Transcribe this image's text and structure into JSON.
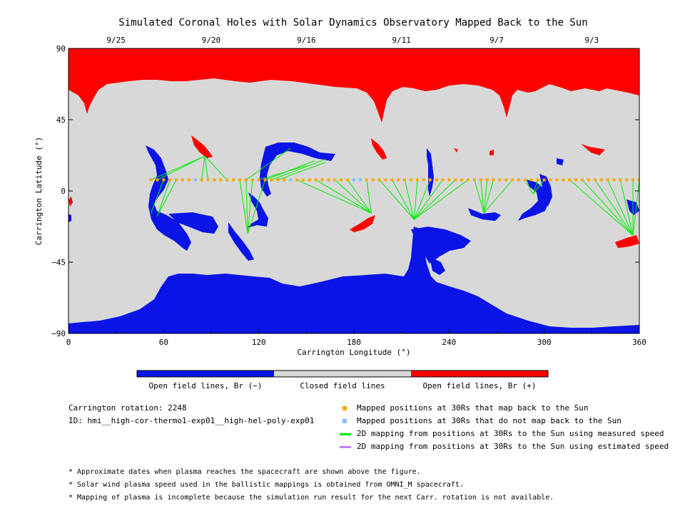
{
  "colors": {
    "open_negative": "#0a14e6",
    "closed": "#d8d8d8",
    "open_positive": "#ff0000",
    "mapped_back": "#f5a800",
    "not_mapped_back": "#7fbfff",
    "measured_speed": "#00ee00",
    "estimated_speed": "#c080ff"
  },
  "chart_data": {
    "type": "map",
    "title": "Simulated Coronal Holes with Solar Dynamics Observatory Mapped Back to the Sun",
    "xlabel": "Carrington Longitude (°)",
    "ylabel": "Carrington Latitude (°)",
    "xlim": [
      0,
      360
    ],
    "ylim": [
      -90,
      90
    ],
    "x_ticks": [
      0,
      60,
      120,
      180,
      240,
      300,
      360
    ],
    "y_ticks": [
      90,
      45,
      0,
      -45,
      -90
    ],
    "y_tick_labels": [
      "90",
      "45",
      "0",
      "−45",
      "−90"
    ],
    "top_axis_dates": [
      {
        "label": "9/25",
        "lon": 30
      },
      {
        "label": "9/20",
        "lon": 90
      },
      {
        "label": "9/16",
        "lon": 150
      },
      {
        "label": "9/11",
        "lon": 210
      },
      {
        "label": "9/7",
        "lon": 270
      },
      {
        "label": "9/3",
        "lon": 330
      }
    ],
    "spacecraft_lat": 7,
    "mapped_positions_lon": [
      52,
      56,
      60,
      64,
      68,
      72,
      76,
      84,
      88,
      92,
      96,
      100,
      104,
      108,
      112,
      116,
      120,
      124,
      128,
      132,
      136,
      144,
      148,
      152,
      156,
      160,
      164,
      168,
      172,
      176,
      188,
      192,
      196,
      200,
      204,
      208,
      212,
      216,
      220,
      224,
      228,
      232,
      236,
      240,
      244,
      248,
      252,
      256,
      260,
      264,
      268,
      272,
      276,
      280,
      284,
      288,
      292,
      296,
      300,
      304,
      308,
      312,
      316,
      320,
      324,
      328,
      332,
      336,
      340,
      344,
      348,
      352,
      356,
      360
    ],
    "unmapped_positions_lon": [
      80,
      140,
      180,
      184
    ],
    "field_lines": [
      {
        "from": [
          52,
          7
        ],
        "to": [
          86,
          22
        ]
      },
      {
        "from": [
          56,
          7
        ],
        "to": [
          86,
          22
        ]
      },
      {
        "from": [
          60,
          7
        ],
        "to": [
          52,
          -14
        ]
      },
      {
        "from": [
          64,
          7
        ],
        "to": [
          56,
          -16
        ]
      },
      {
        "from": [
          68,
          7
        ],
        "to": [
          57,
          -14
        ]
      },
      {
        "from": [
          84,
          7
        ],
        "to": [
          86,
          22
        ]
      },
      {
        "from": [
          88,
          7
        ],
        "to": [
          86,
          22
        ]
      },
      {
        "from": [
          100,
          7
        ],
        "to": [
          86,
          22
        ]
      },
      {
        "from": [
          108,
          7
        ],
        "to": [
          113,
          -27
        ]
      },
      {
        "from": [
          112,
          7
        ],
        "to": [
          113,
          -27
        ]
      },
      {
        "from": [
          116,
          7
        ],
        "to": [
          113,
          -27
        ]
      },
      {
        "from": [
          124,
          7
        ],
        "to": [
          113,
          -27
        ]
      },
      {
        "from": [
          112,
          7
        ],
        "to": [
          140,
          27
        ]
      },
      {
        "from": [
          120,
          7
        ],
        "to": [
          150,
          16
        ]
      },
      {
        "from": [
          124,
          7
        ],
        "to": [
          155,
          19
        ]
      },
      {
        "from": [
          132,
          7
        ],
        "to": [
          162,
          18
        ]
      },
      {
        "from": [
          128,
          7
        ],
        "to": [
          162,
          20
        ]
      },
      {
        "from": [
          144,
          7
        ],
        "to": [
          191,
          -14
        ]
      },
      {
        "from": [
          156,
          7
        ],
        "to": [
          191,
          -14
        ]
      },
      {
        "from": [
          168,
          7
        ],
        "to": [
          191,
          -14
        ]
      },
      {
        "from": [
          176,
          7
        ],
        "to": [
          191,
          -14
        ]
      },
      {
        "from": [
          188,
          7
        ],
        "to": [
          191,
          -14
        ]
      },
      {
        "from": [
          196,
          7
        ],
        "to": [
          218,
          -18
        ]
      },
      {
        "from": [
          204,
          7
        ],
        "to": [
          218,
          -18
        ]
      },
      {
        "from": [
          212,
          7
        ],
        "to": [
          218,
          -18
        ]
      },
      {
        "from": [
          220,
          7
        ],
        "to": [
          218,
          -18
        ]
      },
      {
        "from": [
          228,
          7
        ],
        "to": [
          218,
          -18
        ]
      },
      {
        "from": [
          236,
          7
        ],
        "to": [
          218,
          -18
        ]
      },
      {
        "from": [
          244,
          7
        ],
        "to": [
          218,
          -18
        ]
      },
      {
        "from": [
          252,
          7
        ],
        "to": [
          218,
          -18
        ]
      },
      {
        "from": [
          256,
          7
        ],
        "to": [
          262,
          -14
        ]
      },
      {
        "from": [
          260,
          7
        ],
        "to": [
          262,
          -14
        ]
      },
      {
        "from": [
          264,
          7
        ],
        "to": [
          262,
          -14
        ]
      },
      {
        "from": [
          268,
          7
        ],
        "to": [
          262,
          -14
        ]
      },
      {
        "from": [
          280,
          7
        ],
        "to": [
          262,
          -14
        ]
      },
      {
        "from": [
          288,
          7
        ],
        "to": [
          293,
          -2
        ]
      },
      {
        "from": [
          296,
          7
        ],
        "to": [
          293,
          -2
        ]
      },
      {
        "from": [
          300,
          7
        ],
        "to": [
          293,
          -2
        ]
      },
      {
        "from": [
          316,
          7
        ],
        "to": [
          356,
          -28
        ]
      },
      {
        "from": [
          324,
          7
        ],
        "to": [
          356,
          -28
        ]
      },
      {
        "from": [
          332,
          7
        ],
        "to": [
          356,
          -28
        ]
      },
      {
        "from": [
          340,
          7
        ],
        "to": [
          356,
          -28
        ]
      },
      {
        "from": [
          348,
          7
        ],
        "to": [
          356,
          -28
        ]
      },
      {
        "from": [
          356,
          7
        ],
        "to": [
          356,
          -28
        ]
      },
      {
        "from": [
          360,
          7
        ],
        "to": [
          356,
          -28
        ]
      }
    ],
    "colorbar_labels": [
      "Open field lines, Br (−)",
      "Closed field lines",
      "Open field lines, Br (+)"
    ]
  },
  "info": {
    "rotation": "Carrington rotation: 2248",
    "id": "ID: hmi__high-cor-thermo1-exp01__high-hel-poly-exp01"
  },
  "legend": [
    {
      "kind": "square",
      "color_key": "mapped_back",
      "label": "Mapped positions at 30Rs that map back to the Sun"
    },
    {
      "kind": "square",
      "color_key": "not_mapped_back",
      "label": "Mapped positions at 30Rs that do not map back to the Sun"
    },
    {
      "kind": "line",
      "color_key": "measured_speed",
      "label": "2D mapping from positions at 30Rs to the Sun using measured speed"
    },
    {
      "kind": "line",
      "color_key": "estimated_speed",
      "label": "2D mapping from positions at 30Rs to the Sun using estimated speed"
    }
  ],
  "footnotes": [
    "* Approximate dates when plasma reaches the spacecraft are shown above the figure.",
    "* Solar wind plasma speed used in the ballistic mappings is obtained from OMNI_M spacecraft.",
    "* Mapping of plasma is incomplete because the simulation run result for the next Carr. rotation is not available."
  ]
}
